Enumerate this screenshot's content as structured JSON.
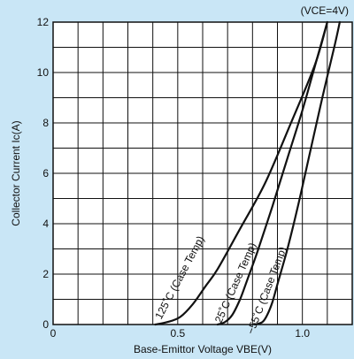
{
  "chart_data": {
    "type": "line",
    "title": "",
    "annotation": "(VCE=4V)",
    "xlabel": "Base-Emittor Voltage VBE(V)",
    "ylabel": "Collector Current Ic(A)",
    "xlim": [
      0,
      1.2
    ],
    "ylim": [
      0,
      12
    ],
    "xticks": [
      0,
      0.5,
      1.0
    ],
    "xtick_labels": [
      "0",
      "0.5",
      "1.0"
    ],
    "yticks": [
      0,
      2,
      4,
      6,
      8,
      10,
      12
    ],
    "ytick_labels": [
      "0",
      "2",
      "4",
      "6",
      "8",
      "10",
      "12"
    ],
    "grid": true,
    "series": [
      {
        "name": "125˚C (Case Temp)",
        "x": [
          0.41,
          0.46,
          0.51,
          0.56,
          0.61,
          0.66,
          0.75,
          0.85,
          0.95,
          1.05,
          1.1
        ],
        "y": [
          0.0,
          0.1,
          0.3,
          0.8,
          1.5,
          2.2,
          3.8,
          5.6,
          7.9,
          10.3,
          12.0
        ]
      },
      {
        "name": "25˚C (Case Temp)",
        "x": [
          0.66,
          0.69,
          0.72,
          0.75,
          0.78,
          0.82,
          0.88,
          0.94,
          1.0,
          1.06,
          1.1
        ],
        "y": [
          0.0,
          0.1,
          0.4,
          1.0,
          1.8,
          2.9,
          4.7,
          6.6,
          8.5,
          10.6,
          12.0
        ]
      },
      {
        "name": "−55˚C (Case Temp)",
        "x": [
          0.81,
          0.84,
          0.86,
          0.88,
          0.9,
          0.94,
          0.98,
          1.03,
          1.08,
          1.13,
          1.15
        ],
        "y": [
          0.0,
          0.1,
          0.4,
          0.9,
          1.6,
          3.0,
          4.6,
          6.8,
          9.0,
          11.1,
          12.0
        ]
      }
    ],
    "curve_labels": [
      "125˚C (Case Temp)",
      "25˚C (Case Temp)",
      "−55˚C (Case Temp)"
    ]
  }
}
